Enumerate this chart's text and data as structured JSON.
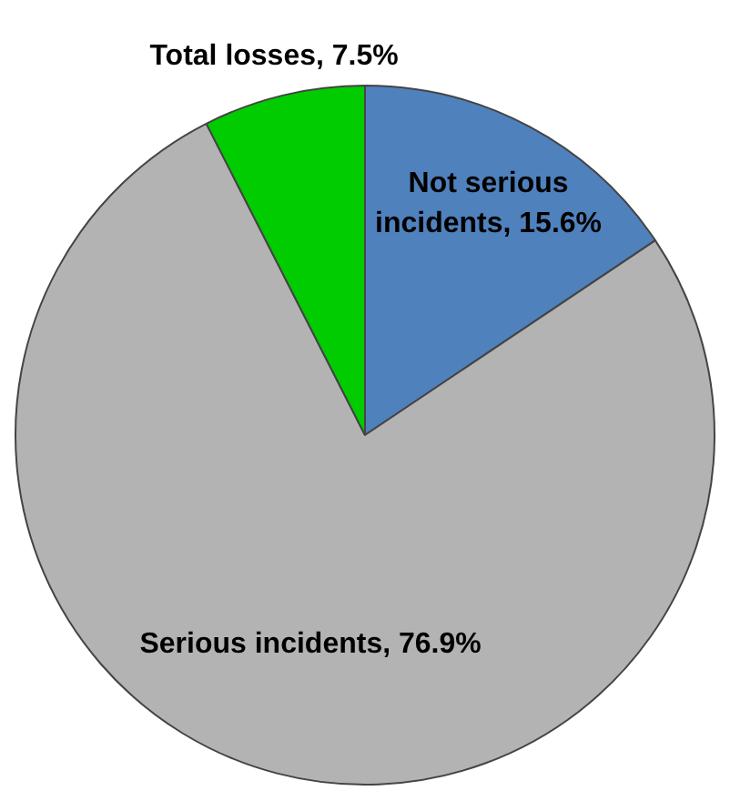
{
  "chart_data": {
    "type": "pie",
    "categories": [
      "Not serious incidents",
      "Serious incidents",
      "Total losses"
    ],
    "values": [
      15.6,
      76.9,
      7.5
    ],
    "colors": [
      "#4f81bd",
      "#b3b3b3",
      "#00cc00"
    ],
    "value_labels": [
      "15.6%",
      "76.9%",
      "7.5%"
    ],
    "legend": false
  }
}
